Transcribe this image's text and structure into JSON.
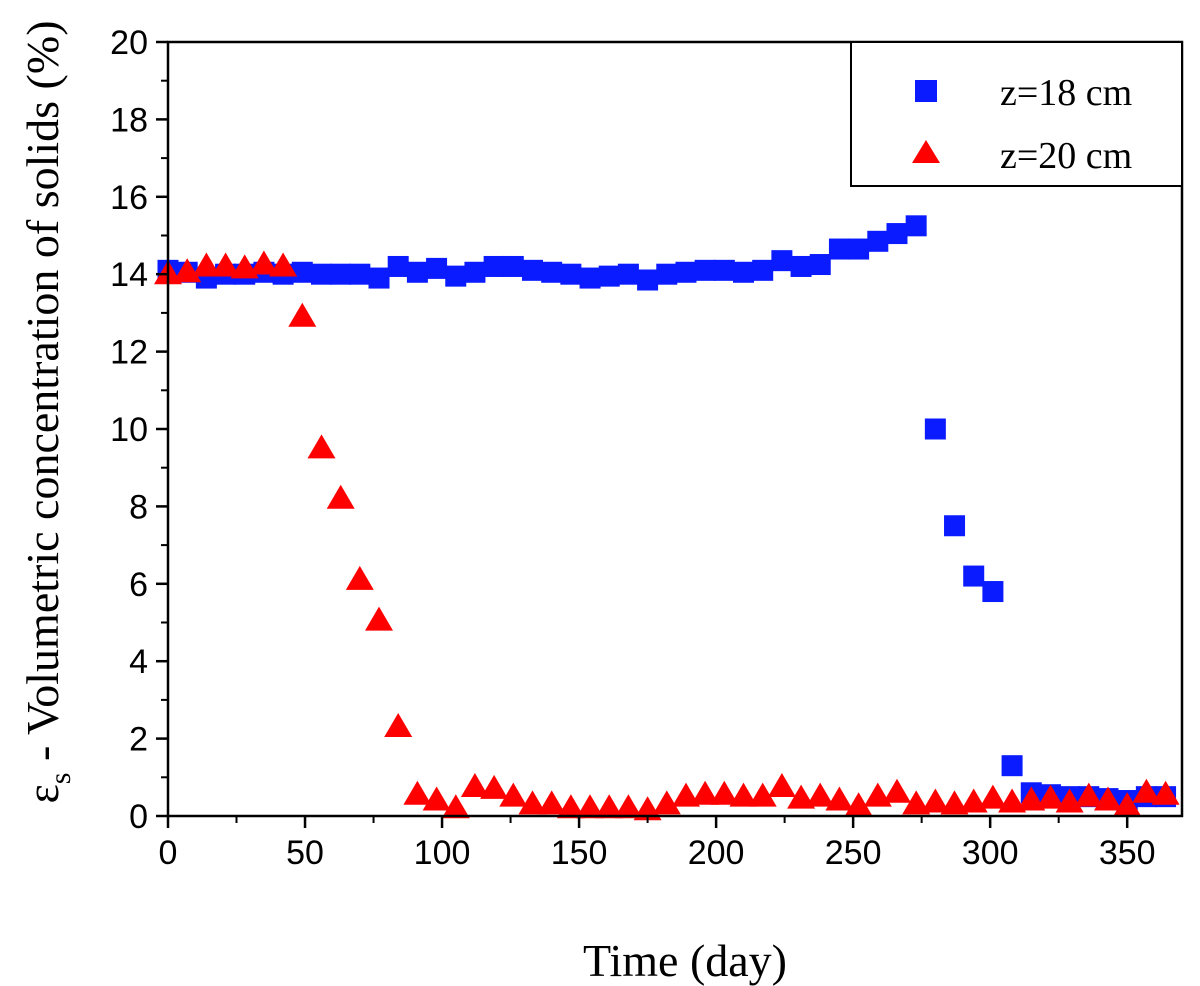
{
  "chart_data": {
    "type": "scatter",
    "title": "",
    "xlabel": "Time (day)",
    "ylabel_symbol": "ε",
    "ylabel_subscript": "s",
    "ylabel_text": " - Volumetric concentration of solids (%)",
    "xlim": [
      0,
      370
    ],
    "ylim": [
      0,
      20
    ],
    "xticks": [
      "0",
      "50",
      "100",
      "150",
      "200",
      "250",
      "300",
      "350"
    ],
    "yticks": [
      "0",
      "2",
      "4",
      "6",
      "8",
      "10",
      "12",
      "14",
      "16",
      "18",
      "20"
    ],
    "grid": false,
    "legend_position": "top-right",
    "colors": {
      "blue": "#0a1bff",
      "red": "#ff0000",
      "axis": "#000000"
    },
    "series": [
      {
        "name": "z=18 cm",
        "marker": "square",
        "color": "#0a1bff",
        "x": [
          0,
          7,
          14,
          21,
          28,
          35,
          42,
          49,
          56,
          63,
          70,
          77,
          84,
          91,
          98,
          105,
          112,
          119,
          126,
          133,
          140,
          147,
          154,
          161,
          168,
          175,
          182,
          189,
          196,
          203,
          210,
          217,
          224,
          231,
          238,
          245,
          252,
          259,
          266,
          273,
          280,
          287,
          294,
          301,
          308,
          315,
          322,
          329,
          336,
          343,
          350,
          357,
          364
        ],
        "y": [
          14.1,
          14.05,
          13.9,
          14.0,
          14.0,
          14.05,
          14.0,
          14.05,
          14.0,
          14.0,
          14.0,
          13.9,
          14.2,
          14.05,
          14.15,
          13.95,
          14.05,
          14.2,
          14.2,
          14.1,
          14.05,
          14.0,
          13.9,
          13.95,
          14.0,
          13.85,
          14.0,
          14.05,
          14.1,
          14.1,
          14.05,
          14.1,
          14.35,
          14.2,
          14.25,
          14.65,
          14.65,
          14.85,
          15.05,
          15.25,
          10.0,
          7.5,
          6.2,
          5.8,
          1.3,
          0.6,
          0.55,
          0.5,
          0.5,
          0.45,
          0.4,
          0.5,
          0.5
        ]
      },
      {
        "name": "z=20 cm",
        "marker": "triangle",
        "color": "#ff0000",
        "x": [
          0,
          7,
          14,
          21,
          28,
          35,
          42,
          49,
          56,
          63,
          70,
          77,
          84,
          91,
          98,
          105,
          112,
          119,
          126,
          133,
          140,
          147,
          154,
          161,
          168,
          175,
          182,
          189,
          196,
          203,
          210,
          217,
          224,
          231,
          238,
          245,
          252,
          259,
          266,
          273,
          280,
          287,
          294,
          301,
          308,
          315,
          322,
          329,
          336,
          343,
          350,
          357,
          364
        ],
        "y": [
          14.0,
          14.05,
          14.2,
          14.2,
          14.15,
          14.25,
          14.2,
          12.9,
          9.5,
          8.2,
          6.1,
          5.05,
          2.3,
          0.55,
          0.4,
          0.2,
          0.75,
          0.7,
          0.5,
          0.3,
          0.3,
          0.2,
          0.2,
          0.2,
          0.2,
          0.15,
          0.3,
          0.5,
          0.55,
          0.55,
          0.5,
          0.5,
          0.75,
          0.45,
          0.5,
          0.4,
          0.25,
          0.5,
          0.6,
          0.3,
          0.35,
          0.3,
          0.35,
          0.45,
          0.35,
          0.4,
          0.45,
          0.35,
          0.5,
          0.4,
          0.25,
          0.6,
          0.55
        ]
      }
    ]
  }
}
